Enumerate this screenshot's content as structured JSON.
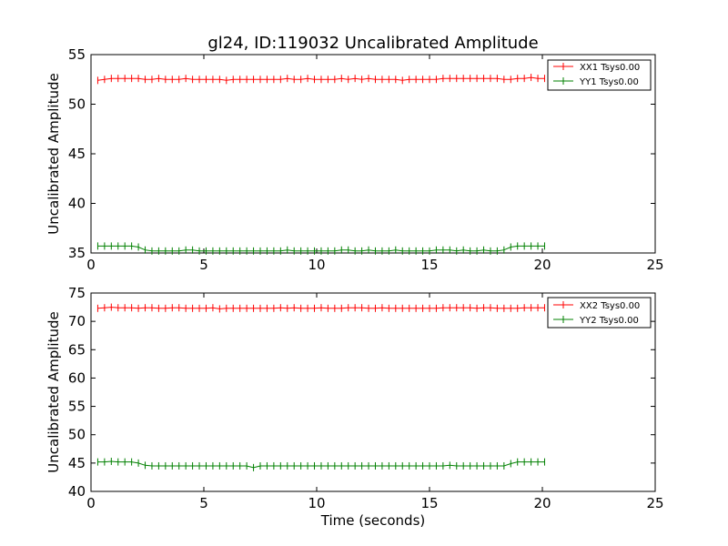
{
  "chart_data": [
    {
      "type": "line",
      "title": "gl24, ID:119032 Uncalibrated Amplitude",
      "xlabel": "",
      "ylabel": "Uncalibrated Amplitude",
      "xlim": [
        0,
        25
      ],
      "ylim": [
        35,
        55
      ],
      "xticks": [
        "0",
        "5",
        "10",
        "15",
        "20",
        "25"
      ],
      "yticks": [
        "35",
        "40",
        "45",
        "50",
        "55"
      ],
      "grid": false,
      "legend_position": "top-right",
      "series": [
        {
          "name": "XX1 Tsys0.00",
          "color": "#ff0000",
          "marker": "plus",
          "x": [
            0.3,
            0.6,
            0.9,
            1.2,
            1.5,
            1.8,
            2.1,
            2.4,
            2.7,
            3.0,
            3.3,
            3.6,
            3.9,
            4.2,
            4.5,
            4.8,
            5.1,
            5.4,
            5.7,
            6.0,
            6.3,
            6.6,
            6.9,
            7.2,
            7.5,
            7.8,
            8.1,
            8.4,
            8.7,
            9.0,
            9.3,
            9.6,
            9.9,
            10.2,
            10.5,
            10.8,
            11.1,
            11.4,
            11.7,
            12.0,
            12.3,
            12.6,
            12.9,
            13.2,
            13.5,
            13.8,
            14.1,
            14.4,
            14.7,
            15.0,
            15.3,
            15.6,
            15.9,
            16.2,
            16.5,
            16.8,
            17.1,
            17.4,
            17.7,
            18.0,
            18.3,
            18.6,
            18.9,
            19.2,
            19.5,
            19.8,
            20.1
          ],
          "y": [
            52.4,
            52.5,
            52.6,
            52.6,
            52.6,
            52.6,
            52.6,
            52.5,
            52.5,
            52.6,
            52.5,
            52.5,
            52.5,
            52.6,
            52.5,
            52.5,
            52.5,
            52.5,
            52.5,
            52.4,
            52.5,
            52.5,
            52.5,
            52.5,
            52.5,
            52.5,
            52.5,
            52.5,
            52.6,
            52.5,
            52.5,
            52.6,
            52.5,
            52.5,
            52.5,
            52.5,
            52.6,
            52.5,
            52.6,
            52.5,
            52.6,
            52.5,
            52.5,
            52.5,
            52.5,
            52.4,
            52.5,
            52.5,
            52.5,
            52.5,
            52.5,
            52.6,
            52.6,
            52.6,
            52.6,
            52.6,
            52.6,
            52.6,
            52.6,
            52.6,
            52.5,
            52.5,
            52.6,
            52.6,
            52.7,
            52.6,
            52.6
          ]
        },
        {
          "name": "YY1 Tsys0.00",
          "color": "#008000",
          "marker": "plus",
          "x": [
            0.3,
            0.6,
            0.9,
            1.2,
            1.5,
            1.8,
            2.1,
            2.4,
            2.7,
            3.0,
            3.3,
            3.6,
            3.9,
            4.2,
            4.5,
            4.8,
            5.1,
            5.4,
            5.7,
            6.0,
            6.3,
            6.6,
            6.9,
            7.2,
            7.5,
            7.8,
            8.1,
            8.4,
            8.7,
            9.0,
            9.3,
            9.6,
            9.9,
            10.2,
            10.5,
            10.8,
            11.1,
            11.4,
            11.7,
            12.0,
            12.3,
            12.6,
            12.9,
            13.2,
            13.5,
            13.8,
            14.1,
            14.4,
            14.7,
            15.0,
            15.3,
            15.6,
            15.9,
            16.2,
            16.5,
            16.8,
            17.1,
            17.4,
            17.7,
            18.0,
            18.3,
            18.6,
            18.9,
            19.2,
            19.5,
            19.8,
            20.1
          ],
          "y": [
            35.7,
            35.7,
            35.7,
            35.7,
            35.7,
            35.7,
            35.6,
            35.3,
            35.2,
            35.2,
            35.2,
            35.2,
            35.2,
            35.3,
            35.3,
            35.2,
            35.2,
            35.2,
            35.2,
            35.2,
            35.2,
            35.2,
            35.2,
            35.2,
            35.2,
            35.2,
            35.2,
            35.2,
            35.3,
            35.2,
            35.2,
            35.2,
            35.2,
            35.2,
            35.2,
            35.2,
            35.3,
            35.3,
            35.2,
            35.2,
            35.3,
            35.2,
            35.2,
            35.2,
            35.3,
            35.2,
            35.2,
            35.2,
            35.2,
            35.2,
            35.3,
            35.3,
            35.3,
            35.2,
            35.3,
            35.2,
            35.2,
            35.3,
            35.2,
            35.2,
            35.3,
            35.6,
            35.7,
            35.7,
            35.7,
            35.7,
            35.7
          ]
        }
      ]
    },
    {
      "type": "line",
      "title": "",
      "xlabel": "Time (seconds)",
      "ylabel": "Uncalibrated Amplitude",
      "xlim": [
        0,
        25
      ],
      "ylim": [
        40,
        75
      ],
      "xticks": [
        "0",
        "5",
        "10",
        "15",
        "20",
        "25"
      ],
      "yticks": [
        "40",
        "45",
        "50",
        "55",
        "60",
        "65",
        "70",
        "75"
      ],
      "grid": false,
      "legend_position": "top-right",
      "series": [
        {
          "name": "XX2 Tsys0.00",
          "color": "#ff0000",
          "marker": "plus",
          "x": [
            0.3,
            0.6,
            0.9,
            1.2,
            1.5,
            1.8,
            2.1,
            2.4,
            2.7,
            3.0,
            3.3,
            3.6,
            3.9,
            4.2,
            4.5,
            4.8,
            5.1,
            5.4,
            5.7,
            6.0,
            6.3,
            6.6,
            6.9,
            7.2,
            7.5,
            7.8,
            8.1,
            8.4,
            8.7,
            9.0,
            9.3,
            9.6,
            9.9,
            10.2,
            10.5,
            10.8,
            11.1,
            11.4,
            11.7,
            12.0,
            12.3,
            12.6,
            12.9,
            13.2,
            13.5,
            13.8,
            14.1,
            14.4,
            14.7,
            15.0,
            15.3,
            15.6,
            15.9,
            16.2,
            16.5,
            16.8,
            17.1,
            17.4,
            17.7,
            18.0,
            18.3,
            18.6,
            18.9,
            19.2,
            19.5,
            19.8,
            20.1
          ],
          "y": [
            72.3,
            72.4,
            72.5,
            72.4,
            72.4,
            72.4,
            72.3,
            72.4,
            72.4,
            72.3,
            72.3,
            72.4,
            72.4,
            72.3,
            72.3,
            72.3,
            72.3,
            72.4,
            72.2,
            72.3,
            72.3,
            72.3,
            72.3,
            72.3,
            72.3,
            72.3,
            72.3,
            72.4,
            72.3,
            72.4,
            72.3,
            72.3,
            72.3,
            72.4,
            72.3,
            72.3,
            72.3,
            72.4,
            72.4,
            72.4,
            72.3,
            72.3,
            72.4,
            72.3,
            72.3,
            72.3,
            72.3,
            72.3,
            72.3,
            72.3,
            72.3,
            72.4,
            72.4,
            72.4,
            72.4,
            72.4,
            72.3,
            72.4,
            72.4,
            72.3,
            72.3,
            72.3,
            72.3,
            72.4,
            72.4,
            72.4,
            72.4
          ]
        },
        {
          "name": "YY2 Tsys0.00",
          "color": "#008000",
          "marker": "plus",
          "x": [
            0.3,
            0.6,
            0.9,
            1.2,
            1.5,
            1.8,
            2.1,
            2.4,
            2.7,
            3.0,
            3.3,
            3.6,
            3.9,
            4.2,
            4.5,
            4.8,
            5.1,
            5.4,
            5.7,
            6.0,
            6.3,
            6.6,
            6.9,
            7.2,
            7.5,
            7.8,
            8.1,
            8.4,
            8.7,
            9.0,
            9.3,
            9.6,
            9.9,
            10.2,
            10.5,
            10.8,
            11.1,
            11.4,
            11.7,
            12.0,
            12.3,
            12.6,
            12.9,
            13.2,
            13.5,
            13.8,
            14.1,
            14.4,
            14.7,
            15.0,
            15.3,
            15.6,
            15.9,
            16.2,
            16.5,
            16.8,
            17.1,
            17.4,
            17.7,
            18.0,
            18.3,
            18.6,
            18.9,
            19.2,
            19.5,
            19.8,
            20.1
          ],
          "y": [
            45.2,
            45.2,
            45.3,
            45.2,
            45.2,
            45.2,
            45.0,
            44.6,
            44.5,
            44.5,
            44.5,
            44.5,
            44.5,
            44.5,
            44.5,
            44.5,
            44.5,
            44.5,
            44.5,
            44.5,
            44.5,
            44.5,
            44.5,
            44.2,
            44.5,
            44.5,
            44.5,
            44.5,
            44.5,
            44.5,
            44.5,
            44.5,
            44.5,
            44.5,
            44.5,
            44.5,
            44.5,
            44.5,
            44.5,
            44.5,
            44.5,
            44.5,
            44.5,
            44.5,
            44.5,
            44.5,
            44.5,
            44.5,
            44.5,
            44.5,
            44.5,
            44.5,
            44.6,
            44.5,
            44.5,
            44.5,
            44.5,
            44.5,
            44.5,
            44.5,
            44.5,
            44.9,
            45.2,
            45.2,
            45.2,
            45.2,
            45.2
          ]
        }
      ]
    }
  ]
}
